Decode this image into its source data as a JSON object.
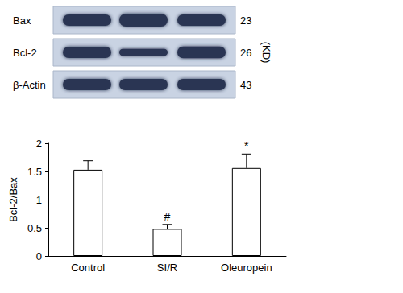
{
  "chart_data": {
    "type": "bar",
    "categories": [
      "Control",
      "SI/R",
      "Oleuropein"
    ],
    "values": [
      1.53,
      0.48,
      1.56
    ],
    "errors": [
      0.16,
      0.08,
      0.25
    ],
    "ylabel": "Bcl-2/Bax",
    "ylim": [
      0,
      2
    ],
    "yticks": [
      0,
      0.5,
      1,
      1.5,
      2
    ],
    "grid": false,
    "color": "#ffffff",
    "annotations": [
      {
        "category": "SI/R",
        "text": "#"
      },
      {
        "category": "Oleuropein",
        "text": "*"
      }
    ]
  },
  "blot": {
    "unit": "(KD)",
    "rows": [
      {
        "label": "Bax",
        "kd": 23,
        "intensity": [
          1,
          1.15,
          1
        ]
      },
      {
        "label": "Bcl-2",
        "kd": 26,
        "intensity": [
          1,
          0.6,
          1.05
        ]
      },
      {
        "label": "β-Actin",
        "kd": 43,
        "intensity": [
          1,
          1,
          1
        ]
      }
    ]
  }
}
